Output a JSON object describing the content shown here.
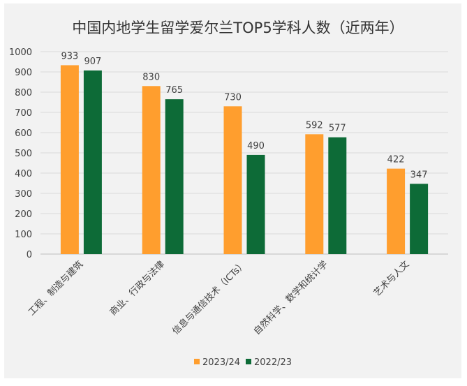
{
  "chart_data": {
    "type": "bar",
    "title": "中国内地学生留学爱尔兰TOP5学科人数（近两年）",
    "categories": [
      "工程、制造与建筑",
      "商业、行政与法律",
      "信息与通信技术（ICTs）",
      "自然科学、数学和统计学",
      "艺术与人文"
    ],
    "series": [
      {
        "name": "2023/24",
        "color": "#ff9e2e",
        "values": [
          933,
          830,
          730,
          592,
          422
        ]
      },
      {
        "name": "2022/23",
        "color": "#0d6b37",
        "values": [
          907,
          765,
          490,
          577,
          347
        ]
      }
    ],
    "ylim": [
      0,
      1000
    ],
    "yticks": [
      "0",
      "100",
      "200",
      "300",
      "400",
      "500",
      "600",
      "700",
      "800",
      "900",
      "1000"
    ],
    "grid": true,
    "legend_position": "bottom"
  }
}
